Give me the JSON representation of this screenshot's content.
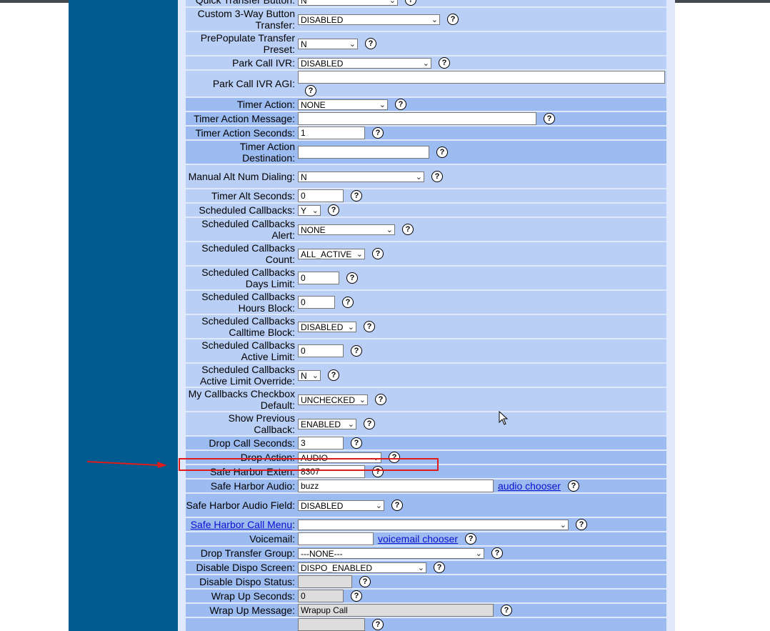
{
  "rows": [
    {
      "label": "Quick Transfer Button:",
      "type": "select",
      "value": "N",
      "w": 140,
      "style": "a"
    },
    {
      "label": "Custom 3-Way Button Transfer:",
      "type": "select",
      "value": "DISABLED",
      "w": 199,
      "style": "a",
      "tall": true
    },
    {
      "label": "PrePopulate Transfer Preset:",
      "type": "select",
      "value": "N",
      "w": 84,
      "style": "a",
      "tall": true
    },
    {
      "label": "Park Call IVR:",
      "type": "select",
      "value": "DISABLED",
      "w": 187,
      "style": "a"
    },
    {
      "label": "Park Call IVR AGI:",
      "type": "text",
      "value": "",
      "w": 514,
      "style": "a",
      "tall": true,
      "helpBelow": true
    },
    {
      "label": "Timer Action:",
      "type": "select",
      "value": "NONE",
      "w": 126,
      "style": "b"
    },
    {
      "label": "Timer Action Message:",
      "type": "text",
      "value": "",
      "w": 334,
      "style": "b"
    },
    {
      "label": "Timer Action Seconds:",
      "type": "text",
      "value": "1",
      "w": 94,
      "style": "b"
    },
    {
      "label": "Timer Action Destination:",
      "type": "text",
      "value": "",
      "w": 184,
      "style": "b",
      "tall": true
    },
    {
      "label": "Manual Alt Num Dialing:",
      "type": "select",
      "value": "N",
      "w": 177,
      "style": "a",
      "tall": true
    },
    {
      "label": "Timer Alt Seconds:",
      "type": "text",
      "value": "0",
      "w": 64,
      "style": "a"
    },
    {
      "label": "Scheduled Callbacks:",
      "type": "select",
      "value": "Y",
      "w": 32,
      "style": "a"
    },
    {
      "label": "Scheduled Callbacks Alert:",
      "type": "select",
      "value": "NONE",
      "w": 136,
      "style": "a",
      "tall": true
    },
    {
      "label": "Scheduled Callbacks Count:",
      "type": "select",
      "value": "ALL_ACTIVE",
      "w": 94,
      "style": "a",
      "tall": true
    },
    {
      "label": "Scheduled Callbacks Days Limit:",
      "type": "text",
      "value": "0",
      "w": 58,
      "style": "a",
      "tall": true
    },
    {
      "label": "Scheduled Callbacks Hours Block:",
      "type": "text",
      "value": "0",
      "w": 52,
      "style": "a",
      "tall": true
    },
    {
      "label": "Scheduled Callbacks Calltime Block:",
      "type": "select",
      "value": "DISABLED",
      "w": 82,
      "style": "a",
      "tall": true
    },
    {
      "label": "Scheduled Callbacks Active Limit:",
      "type": "text",
      "value": "0",
      "w": 64,
      "style": "a",
      "tall": true
    },
    {
      "label": "Scheduled Callbacks Active Limit Override:",
      "type": "select",
      "value": "N",
      "w": 32,
      "style": "a",
      "tall": true
    },
    {
      "label": "My Callbacks Checkbox Default:",
      "type": "select",
      "value": "UNCHECKED",
      "w": 98,
      "style": "a",
      "tall": true
    },
    {
      "label": "Show Previous Callback:",
      "type": "select",
      "value": "ENABLED",
      "w": 82,
      "style": "a",
      "tall": true
    },
    {
      "label": "Drop Call Seconds:",
      "type": "text",
      "value": "3",
      "w": 64,
      "style": "b"
    },
    {
      "label": "Drop Action:",
      "type": "select",
      "value": "AUDIO",
      "w": 117,
      "style": "b"
    },
    {
      "label": "Safe Harbor Exten:",
      "type": "text",
      "value": "8307",
      "w": 94,
      "style": "b"
    },
    {
      "label": "Safe Harbor Audio:",
      "type": "text",
      "value": "buzz",
      "w": 274,
      "style": "b",
      "link": "audio chooser"
    },
    {
      "label": "Safe Harbor Audio Field:",
      "type": "select",
      "value": "DISABLED",
      "w": 121,
      "style": "b",
      "tall": true
    },
    {
      "label": "Safe Harbor Call Menu",
      "type": "select",
      "value": "",
      "w": 379,
      "style": "b",
      "labelLink": true
    },
    {
      "label": "Voicemail:",
      "type": "text",
      "value": "",
      "w": 106,
      "style": "b",
      "link": "voicemail chooser"
    },
    {
      "label": "Drop Transfer Group:",
      "type": "select",
      "value": "---NONE---",
      "w": 261,
      "style": "b"
    },
    {
      "label": "Disable Dispo Screen:",
      "type": "select",
      "value": "DISPO_ENABLED",
      "w": 180,
      "style": "b"
    },
    {
      "label": "Disable Dispo Status:",
      "type": "text",
      "value": "",
      "w": 76,
      "style": "b",
      "disabled": true
    },
    {
      "label": "Wrap Up Seconds:",
      "type": "text",
      "value": "0",
      "w": 64,
      "style": "b",
      "disabled": true
    },
    {
      "label": "Wrap Up Message:",
      "type": "text",
      "value": "Wrapup Call",
      "w": 274,
      "style": "b",
      "disabled": true
    },
    {
      "label": "",
      "type": "text",
      "value": "",
      "w": 94,
      "style": "b",
      "disabled": true
    }
  ],
  "help_symbol": "?",
  "colors": {
    "sidebar": "#015b91",
    "row_light": "#bacff5",
    "row_dark": "#9cbbf0",
    "highlight": "#e01b1b"
  }
}
